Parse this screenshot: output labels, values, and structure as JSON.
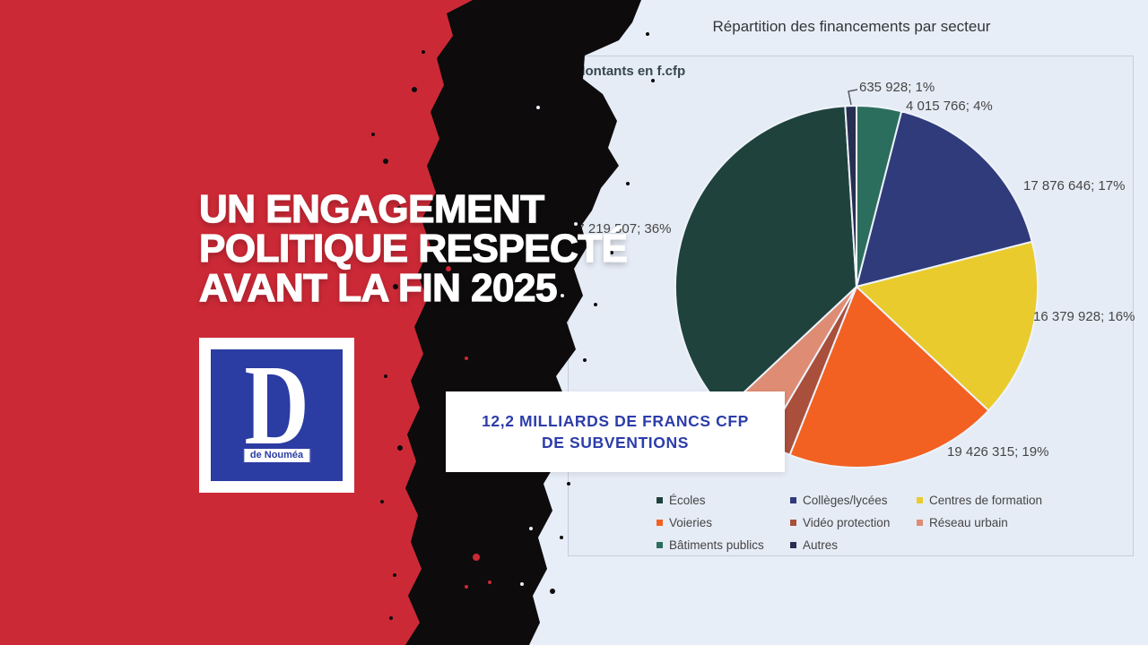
{
  "banner": {
    "headline_lines": [
      "UN ENGAGEMENT",
      "POLITIQUE RESPECTÉ",
      "AVANT LA FIN 2025"
    ],
    "background_color": "#cc2936",
    "brush_color": "#0d0b0c"
  },
  "logo": {
    "letter": "D",
    "caption": "de Nouméa",
    "blue": "#2b3ca3"
  },
  "highlight_box": {
    "line1": "12,2 MILLIARDS DE FRANCS CFP",
    "line2": "DE SUBVENTIONS",
    "text_color": "#2c3da9"
  },
  "chart_data": {
    "type": "pie",
    "title": "Répartition des financements par secteur",
    "units_label": "Montants en f.cfp",
    "legend_position": "bottom",
    "slices": [
      {
        "name": "Bâtiments publics",
        "value": 4015766,
        "percent": 4,
        "data_label": "4 015 766; 4%",
        "color": "#2c6e5d"
      },
      {
        "name": "Collèges/lycées",
        "value": 17876646,
        "percent": 17,
        "data_label": "17 876 646; 17%",
        "color": "#2f3b7a"
      },
      {
        "name": "Centres de formation",
        "value": 16379928,
        "percent": 16,
        "data_label": "16 379 928; 16%",
        "color": "#e9cb2d"
      },
      {
        "name": "Voieries",
        "value": 19426315,
        "percent": 19,
        "data_label": "19 426 315; 19%",
        "color": "#f26122"
      },
      {
        "name": "Vidéo protection",
        "value": null,
        "percent": 2.5,
        "data_label": null,
        "color": "#a94f3c"
      },
      {
        "name": "Réseau urbain",
        "value": null,
        "percent": 4.5,
        "data_label": null,
        "color": "#de8c74"
      },
      {
        "name": "Écoles",
        "value": 37219507,
        "percent": 36,
        "data_label": "37 219 507; 36%",
        "color": "#1f423c"
      },
      {
        "name": "Autres",
        "value": 635928,
        "percent": 1,
        "data_label": "635 928; 1%",
        "color": "#282e52"
      }
    ],
    "legend": [
      {
        "label": "Écoles",
        "color": "#1f423c"
      },
      {
        "label": "Collèges/lycées",
        "color": "#2f3b7a"
      },
      {
        "label": "Centres de formation",
        "color": "#e9cb2d"
      },
      {
        "label": "Voieries",
        "color": "#f26122"
      },
      {
        "label": "Vidéo protection",
        "color": "#a94f3c"
      },
      {
        "label": "Réseau urbain",
        "color": "#de8c74"
      },
      {
        "label": "Bâtiments publics",
        "color": "#2c6e5d"
      },
      {
        "label": "Autres",
        "color": "#282e52"
      }
    ]
  }
}
